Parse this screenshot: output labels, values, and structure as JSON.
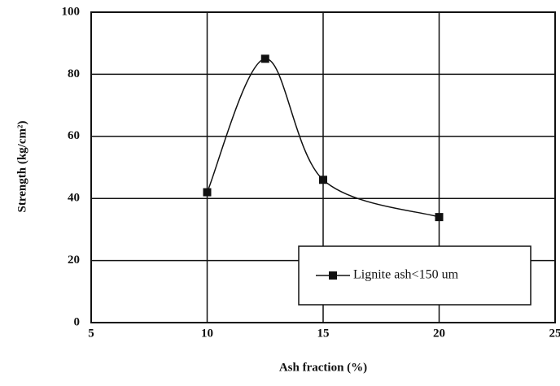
{
  "chart_data": {
    "type": "line",
    "x_label": "Ash fraction (%)",
    "y_label": "Strength (kg/cm²)",
    "x": [
      10,
      12.5,
      15,
      20
    ],
    "series": [
      {
        "name": "Lignite ash<150 um",
        "color": "#111111",
        "values": [
          42,
          85,
          46,
          34
        ]
      }
    ],
    "xlim": [
      5,
      25
    ],
    "xticks": [
      5,
      10,
      15,
      20,
      25
    ],
    "ylim": [
      0,
      100
    ],
    "yticks": [
      0,
      20,
      40,
      60,
      80,
      100
    ],
    "grid": true,
    "legend": "lower right"
  }
}
